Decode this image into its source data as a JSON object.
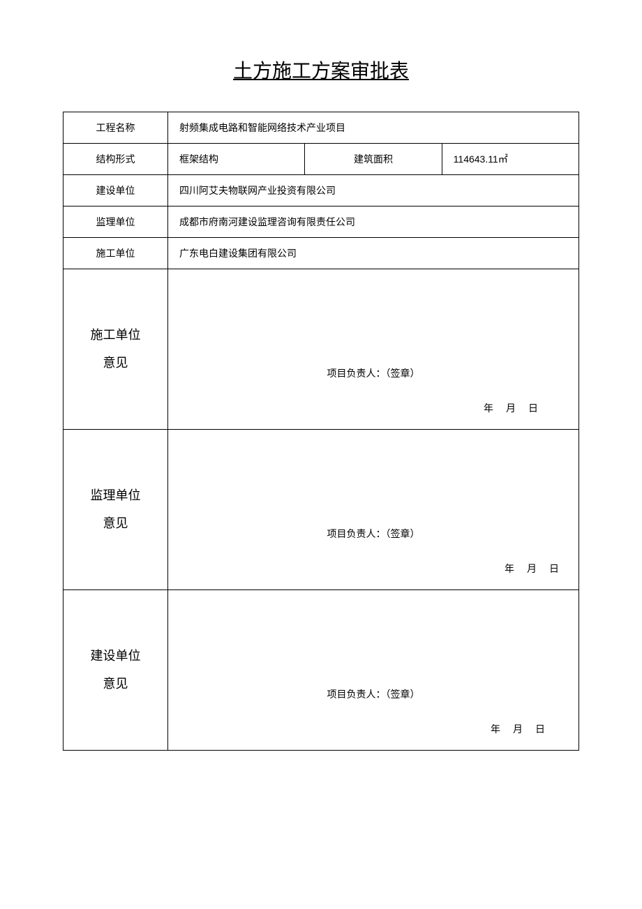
{
  "title": "土方施工方案审批表",
  "rows": {
    "project_name_label": "工程名称",
    "project_name_value": "射频集成电路和智能网络技术产业项目",
    "structure_label": "结构形式",
    "structure_value": "框架结构",
    "area_label": "建筑面积",
    "area_value": "114643.11㎡",
    "construction_unit_label": "建设单位",
    "construction_unit_value": "四川阿艾夫物联网产业投资有限公司",
    "supervision_unit_label": "监理单位",
    "supervision_unit_value": "成都市府南河建设监理咨询有限责任公司",
    "builder_unit_label": "施工单位",
    "builder_unit_value": "广东电白建设集团有限公司"
  },
  "opinions": {
    "builder": {
      "label_line1": "施工单位",
      "label_line2": "意见",
      "sig": "项目负责人：（签章）",
      "date": "年　月　日"
    },
    "supervisor": {
      "label_line1": "监理单位",
      "label_line2": "意见",
      "sig": "项目负责人：（签章）",
      "date": "年　月　日"
    },
    "owner": {
      "label_line1": "建设单位",
      "label_line2": "意见",
      "sig": "项目负责人：（签章）",
      "date": "年　月　日"
    }
  }
}
